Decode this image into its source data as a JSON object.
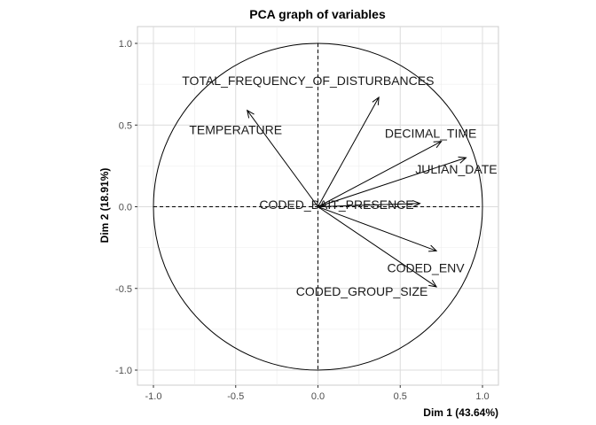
{
  "chart_data": {
    "type": "scatter",
    "title": "PCA graph of variables",
    "xlabel": "Dim 1 (43.64%)",
    "ylabel": "Dim 2 (18.91%)",
    "xlim": [
      -1.0,
      1.0
    ],
    "ylim": [
      -1.0,
      1.0
    ],
    "xticks": [
      "-1.0",
      "-0.5",
      "0.0",
      "0.5",
      "1.0"
    ],
    "yticks": [
      "-1.0",
      "-0.5",
      "0.0",
      "0.5",
      "1.0"
    ],
    "grid": true,
    "correlation_circle": true,
    "variables": [
      {
        "name": "TOTAL_FREQUENCY_OF_DISTURBANCES",
        "x": 0.37,
        "y": 0.67
      },
      {
        "name": "TEMPERATURE",
        "x": -0.43,
        "y": 0.59
      },
      {
        "name": "DECIMAL_TIME",
        "x": 0.75,
        "y": 0.4
      },
      {
        "name": "JULIAN_DATE",
        "x": 0.9,
        "y": 0.3
      },
      {
        "name": "CODED_BAIT_PRESENCE",
        "x": 0.62,
        "y": 0.02
      },
      {
        "name": "CODED_ENV",
        "x": 0.72,
        "y": -0.27
      },
      {
        "name": "CODED_GROUP_SIZE",
        "x": 0.72,
        "y": -0.49
      }
    ]
  }
}
